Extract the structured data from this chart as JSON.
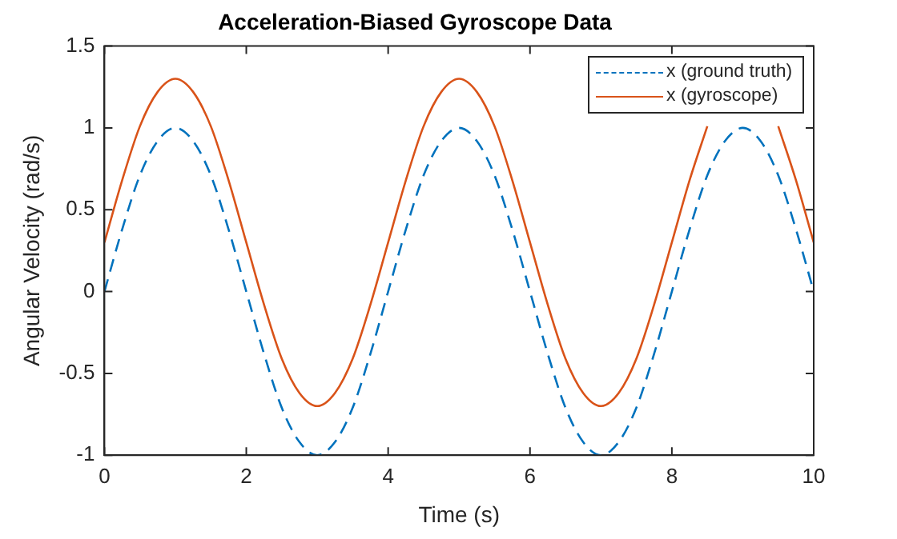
{
  "chart_data": {
    "type": "line",
    "title": "Acceleration-Biased Gyroscope Data",
    "xlabel": "Time (s)",
    "ylabel": "Angular Velocity (rad/s)",
    "x": [
      0,
      0.25,
      0.5,
      0.75,
      1,
      1.25,
      1.5,
      1.75,
      2,
      2.25,
      2.5,
      2.75,
      3,
      3.25,
      3.5,
      3.75,
      4,
      4.25,
      4.5,
      4.75,
      5,
      5.25,
      5.5,
      5.75,
      6,
      6.25,
      6.5,
      6.75,
      7,
      7.25,
      7.5,
      7.75,
      8,
      8.25,
      8.5,
      8.75,
      9,
      9.25,
      9.5,
      9.75,
      10
    ],
    "series": [
      {
        "name": "x (ground truth)",
        "color": "#0072bd",
        "line_style": "dashed",
        "values": [
          0,
          0.38,
          0.71,
          0.92,
          1,
          0.92,
          0.71,
          0.38,
          0,
          -0.38,
          -0.71,
          -0.92,
          -1,
          -0.92,
          -0.71,
          -0.38,
          0,
          0.38,
          0.71,
          0.92,
          1,
          0.92,
          0.71,
          0.38,
          0,
          -0.38,
          -0.71,
          -0.92,
          -1,
          -0.92,
          -0.71,
          -0.38,
          0,
          0.38,
          0.71,
          0.92,
          1,
          0.92,
          0.71,
          0.38,
          0
        ]
      },
      {
        "name": "x (gyroscope)",
        "color": "#d95319",
        "line_style": "solid",
        "values": [
          0.3,
          0.68,
          1.01,
          1.22,
          1.3,
          1.22,
          1.01,
          0.68,
          0.3,
          -0.08,
          -0.41,
          -0.62,
          -0.7,
          -0.62,
          -0.41,
          -0.08,
          0.3,
          0.68,
          1.01,
          1.22,
          1.3,
          1.22,
          1.01,
          0.68,
          0.3,
          -0.08,
          -0.41,
          -0.62,
          -0.7,
          -0.62,
          -0.41,
          -0.08,
          0.3,
          0.68,
          1.01,
          null,
          null,
          null,
          1.01,
          0.68,
          0.3
        ]
      }
    ],
    "xlim": [
      0,
      10
    ],
    "xticks": [
      0,
      2,
      4,
      6,
      8,
      10
    ],
    "ylim": [
      -1,
      1.5
    ],
    "yticks": [
      -1,
      -0.5,
      0,
      0.5,
      1,
      1.5
    ],
    "legend": "top right",
    "marker": "none"
  }
}
